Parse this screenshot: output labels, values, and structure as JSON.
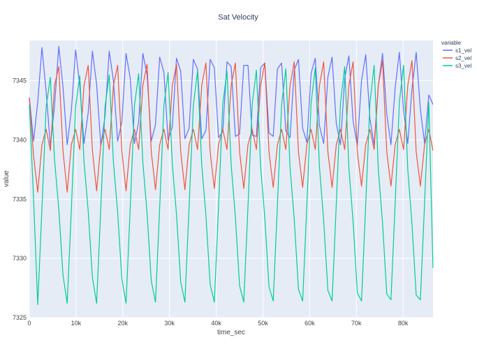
{
  "chart_data": {
    "type": "line",
    "title": "Sat Velocity",
    "xlabel": "time_sec",
    "ylabel": "value",
    "xlim": [
      0,
      86400
    ],
    "ylim": [
      7325,
      7348.4
    ],
    "x_ticks": [
      0,
      10000,
      20000,
      30000,
      40000,
      50000,
      60000,
      70000,
      80000
    ],
    "x_tick_labels": [
      "0",
      "10k",
      "20k",
      "30k",
      "40k",
      "50k",
      "60k",
      "70k",
      "80k"
    ],
    "y_ticks": [
      7325,
      7330,
      7335,
      7340,
      7345
    ],
    "y_tick_labels": [
      "7325",
      "7330",
      "7335",
      "7340",
      "7345"
    ],
    "grid": true,
    "legend": {
      "title": "variable",
      "placement": "top-right"
    },
    "series": [
      {
        "name": "s1_vel",
        "color": "#636efa",
        "x": [
          0,
          900,
          1800,
          2700,
          3600,
          4500,
          5400,
          6300,
          7200,
          8100,
          9000,
          9900,
          10800,
          11700,
          12600,
          13500,
          14400,
          15300,
          16200,
          17100,
          18000,
          18900,
          19800,
          20700,
          21600,
          22500,
          23400,
          24300,
          25200,
          26100,
          27000,
          27900,
          28800,
          29700,
          30600,
          31500,
          32400,
          33300,
          34200,
          35100,
          36000,
          36900,
          37800,
          38700,
          39600,
          40500,
          41400,
          42300,
          43200,
          44100,
          45000,
          45900,
          46800,
          47700,
          48600,
          49500,
          50400,
          51300,
          52200,
          53100,
          54000,
          54900,
          55800,
          56700,
          57600,
          58500,
          59400,
          60300,
          61200,
          62100,
          63000,
          63900,
          64800,
          65700,
          66600,
          67500,
          68400,
          69300,
          70200,
          71100,
          72000,
          72900,
          73800,
          74700,
          75600,
          76500,
          77400,
          78300,
          79200,
          80100,
          81000,
          81900,
          82800,
          83700,
          84600,
          85500,
          86400
        ],
        "values": [
          7343.6,
          7339.9,
          7343.2,
          7347.8,
          7344.1,
          7339.5,
          7342.9,
          7347.9,
          7344.5,
          7339.6,
          7342.5,
          7347.6,
          7344.6,
          7339.7,
          7342.3,
          7347.5,
          7344.7,
          7339.5,
          7342.0,
          7347.5,
          7345.0,
          7339.9,
          7341.5,
          7347.3,
          7345.2,
          7339.7,
          7341.5,
          7347.3,
          7345.5,
          7339.9,
          7341.3,
          7347.0,
          7345.7,
          7340.0,
          7341.1,
          7346.9,
          7345.8,
          7340.1,
          7341.0,
          7346.8,
          7346.0,
          7340.1,
          7340.8,
          7346.8,
          7346.1,
          7340.2,
          7340.7,
          7346.6,
          7346.2,
          7340.3,
          7340.5,
          7346.3,
          7346.3,
          7340.4,
          7340.3,
          7346.1,
          7346.5,
          7340.6,
          7340.3,
          7346.0,
          7346.5,
          7340.8,
          7340.2,
          7345.9,
          7346.8,
          7341.0,
          7339.8,
          7345.6,
          7346.9,
          7341.2,
          7339.7,
          7345.3,
          7347.0,
          7341.4,
          7339.6,
          7345.2,
          7347.1,
          7341.6,
          7339.5,
          7345.0,
          7347.2,
          7341.8,
          7339.6,
          7344.6,
          7347.3,
          7342.2,
          7339.6,
          7344.4,
          7347.4,
          7342.5,
          7339.7,
          7344.3,
          7347.4,
          7342.6,
          7339.7,
          7343.8,
          7343.0
        ]
      },
      {
        "name": "s2_vel",
        "color": "#ef553b",
        "x": [
          0,
          900,
          1800,
          2700,
          3600,
          4500,
          5400,
          6300,
          7200,
          8100,
          9000,
          9900,
          10800,
          11700,
          12600,
          13500,
          14400,
          15300,
          16200,
          17100,
          18000,
          18900,
          19800,
          20700,
          21600,
          22500,
          23400,
          24300,
          25200,
          26100,
          27000,
          27900,
          28800,
          29700,
          30600,
          31500,
          32400,
          33300,
          34200,
          35100,
          36000,
          36900,
          37800,
          38700,
          39600,
          40500,
          41400,
          42300,
          43200,
          44100,
          45000,
          45900,
          46800,
          47700,
          48600,
          49500,
          50400,
          51300,
          52200,
          53100,
          54000,
          54900,
          55800,
          56700,
          57600,
          58500,
          59400,
          60300,
          61200,
          62100,
          63000,
          63900,
          64800,
          65700,
          66600,
          67500,
          68400,
          69300,
          70200,
          71100,
          72000,
          72900,
          73800,
          74700,
          75600,
          76500,
          77400,
          78300,
          79200,
          80100,
          81000,
          81900,
          82800,
          83700,
          84600,
          85500,
          86400
        ],
        "values": [
          7343.5,
          7338.7,
          7335.6,
          7339.6,
          7340.9,
          7339.1,
          7344.6,
          7346.2,
          7339.1,
          7335.6,
          7339.6,
          7340.9,
          7339.2,
          7344.6,
          7346.3,
          7339.1,
          7335.7,
          7339.6,
          7340.9,
          7339.2,
          7344.6,
          7346.3,
          7339.1,
          7335.7,
          7339.6,
          7340.9,
          7339.2,
          7344.6,
          7346.4,
          7339.0,
          7335.8,
          7339.6,
          7340.9,
          7339.2,
          7344.6,
          7346.4,
          7339.0,
          7335.8,
          7339.6,
          7340.9,
          7339.2,
          7344.6,
          7346.5,
          7339.0,
          7335.9,
          7339.6,
          7340.9,
          7339.2,
          7344.6,
          7346.5,
          7339.0,
          7335.9,
          7339.6,
          7340.9,
          7339.2,
          7344.6,
          7346.5,
          7339.0,
          7336.0,
          7339.6,
          7340.9,
          7339.2,
          7344.6,
          7346.6,
          7339.0,
          7336.0,
          7339.6,
          7340.9,
          7339.2,
          7344.6,
          7346.6,
          7339.0,
          7336.0,
          7339.6,
          7340.9,
          7339.2,
          7344.6,
          7346.6,
          7339.0,
          7336.1,
          7339.6,
          7340.9,
          7339.2,
          7344.6,
          7346.7,
          7339.0,
          7336.1,
          7339.6,
          7340.9,
          7339.2,
          7344.6,
          7346.7,
          7339.0,
          7336.1,
          7339.6,
          7340.9,
          7339.1
        ]
      },
      {
        "name": "s3_vel",
        "color": "#00cc96",
        "x": [
          0,
          900,
          1800,
          2700,
          3600,
          4500,
          5400,
          6300,
          7200,
          8100,
          9000,
          9900,
          10800,
          11700,
          12600,
          13500,
          14400,
          15300,
          16200,
          17100,
          18000,
          18900,
          19800,
          20700,
          21600,
          22500,
          23400,
          24300,
          25200,
          26100,
          27000,
          27900,
          28800,
          29700,
          30600,
          31500,
          32400,
          33300,
          34200,
          35100,
          36000,
          36900,
          37800,
          38700,
          39600,
          40500,
          41400,
          42300,
          43200,
          44100,
          45000,
          45900,
          46800,
          47700,
          48600,
          49500,
          50400,
          51300,
          52200,
          53100,
          54000,
          54900,
          55800,
          56700,
          57600,
          58500,
          59400,
          60300,
          61200,
          62100,
          63000,
          63900,
          64800,
          65700,
          66600,
          67500,
          68400,
          69300,
          70200,
          71100,
          72000,
          72900,
          73800,
          74700,
          75600,
          76500,
          77400,
          78300,
          79200,
          80100,
          81000,
          81900,
          82800,
          83700,
          84600,
          85500,
          86400
        ],
        "values": [
          7343.0,
          7335.1,
          7326.1,
          7334.2,
          7342.8,
          7345.3,
          7338.3,
          7334.2,
          7328.6,
          7326.2,
          7334.2,
          7342.8,
          7345.4,
          7338.2,
          7334.0,
          7328.4,
          7326.2,
          7334.3,
          7342.8,
          7345.5,
          7338.1,
          7333.9,
          7328.3,
          7326.2,
          7334.3,
          7342.9,
          7345.6,
          7338.1,
          7333.8,
          7328.1,
          7326.3,
          7334.3,
          7342.9,
          7345.7,
          7338.0,
          7333.7,
          7328.0,
          7326.3,
          7334.4,
          7342.9,
          7345.8,
          7337.9,
          7333.6,
          7327.8,
          7326.3,
          7334.4,
          7343.0,
          7345.8,
          7337.9,
          7333.5,
          7327.7,
          7326.3,
          7334.4,
          7343.0,
          7345.9,
          7337.8,
          7333.4,
          7327.6,
          7326.4,
          7334.5,
          7343.0,
          7346.0,
          7337.7,
          7333.3,
          7327.4,
          7326.4,
          7334.5,
          7343.1,
          7346.1,
          7337.7,
          7333.2,
          7327.3,
          7326.4,
          7334.6,
          7343.1,
          7346.2,
          7337.6,
          7333.1,
          7327.1,
          7326.4,
          7334.6,
          7343.1,
          7346.3,
          7337.5,
          7333.0,
          7327.0,
          7326.5,
          7334.6,
          7343.2,
          7346.3,
          7337.5,
          7332.9,
          7326.9,
          7326.5,
          7334.7,
          7343.2,
          7329.2
        ]
      }
    ]
  }
}
